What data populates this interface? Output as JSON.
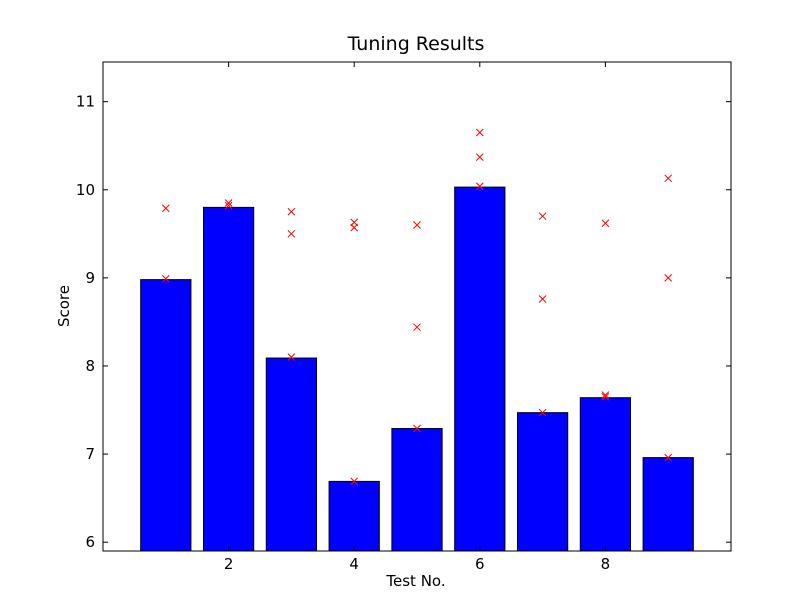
{
  "chart_data": {
    "type": "bar",
    "title": "Tuning Results",
    "xlabel": "Test No.",
    "ylabel": "Score",
    "x": [
      1,
      2,
      3,
      4,
      5,
      6,
      7,
      8,
      9
    ],
    "values": [
      8.98,
      9.8,
      8.09,
      6.69,
      7.29,
      10.03,
      7.47,
      7.64,
      6.96
    ],
    "scatter_points": [
      [
        1,
        9.79
      ],
      [
        1,
        8.99
      ],
      [
        2,
        9.85
      ],
      [
        2,
        9.82
      ],
      [
        3,
        9.75
      ],
      [
        3,
        9.5
      ],
      [
        3,
        8.1
      ],
      [
        4,
        9.63
      ],
      [
        4,
        9.57
      ],
      [
        4,
        6.69
      ],
      [
        5,
        9.6
      ],
      [
        5,
        8.44
      ],
      [
        5,
        7.29
      ],
      [
        6,
        10.65
      ],
      [
        6,
        10.37
      ],
      [
        6,
        10.04
      ],
      [
        7,
        9.7
      ],
      [
        7,
        8.76
      ],
      [
        7,
        7.47
      ],
      [
        8,
        9.62
      ],
      [
        8,
        7.67
      ],
      [
        8,
        7.65
      ],
      [
        9,
        10.13
      ],
      [
        9,
        9.0
      ],
      [
        9,
        6.96
      ]
    ],
    "xlim": [
      0,
      10
    ],
    "ylim": [
      5.9,
      11.45
    ],
    "xticks": [
      2,
      4,
      6,
      8
    ],
    "yticks": [
      6,
      7,
      8,
      9,
      10,
      11
    ],
    "grid": false,
    "colors": {
      "bar_fill": "#0000ff",
      "bar_edge": "#000000",
      "marker": "#ff0000"
    }
  }
}
